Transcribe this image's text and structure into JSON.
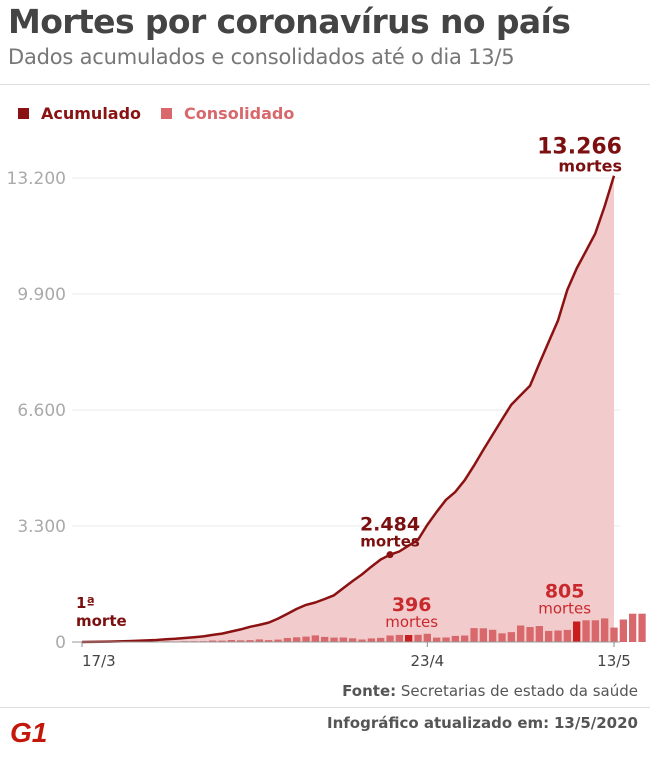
{
  "header": {
    "title": "Mortes por coronavírus no país",
    "subtitle": "Dados acumulados e consolidados até o dia 13/5"
  },
  "legend": {
    "acumulado": "Acumulado",
    "consolidado": "Consolidado"
  },
  "colors": {
    "accumulated_line": "#8b1212",
    "accumulated_area": "#f2cbcc",
    "consolidated_bar": "#d9686c",
    "highlight_bar": "#c81e1e",
    "label_dark": "#7c1010",
    "label_red": "#c8292d",
    "axis_text": "#aaaaaa",
    "gridline": "#e8e8e8",
    "logo": "#c4170c"
  },
  "chart_data": {
    "type": "area",
    "title": "Mortes por coronavírus no país",
    "yticks": [
      "0",
      "3.300",
      "6.600",
      "9.900",
      "13.200"
    ],
    "ytick_values": [
      0,
      3300,
      6600,
      9900,
      13200
    ],
    "ylim": [
      0,
      13500
    ],
    "x_tick_labels": {
      "start": "17/3",
      "mid": "23/4",
      "end": "13/5"
    },
    "x_tick_index": {
      "start": 0,
      "mid": 37,
      "end": 57
    },
    "series": [
      {
        "name": "Acumulado",
        "type": "area",
        "values": [
          1,
          4,
          6,
          11,
          18,
          25,
          34,
          46,
          57,
          77,
          92,
          114,
          136,
          159,
          201,
          240,
          299,
          359,
          432,
          486,
          553,
          667,
          800,
          941,
          1056,
          1124,
          1223,
          1328,
          1532,
          1736,
          1924,
          2141,
          2347,
          2484,
          2575,
          2741,
          2906,
          3331,
          3704,
          4045,
          4271,
          4603,
          5017,
          5466,
          5901,
          6329,
          6750,
          7025,
          7288,
          7921,
          8536,
          9146,
          10017,
          10627,
          11123,
          11625,
          12400,
          13266
        ]
      },
      {
        "name": "Consolidado",
        "type": "bar",
        "start_index": 7,
        "values": [
          12,
          11,
          20,
          15,
          22,
          22,
          23,
          42,
          39,
          57,
          48,
          53,
          73,
          54,
          67,
          114,
          133,
          153,
          188,
          144,
          126,
          127,
          104,
          70,
          103,
          118,
          184,
          202,
          198,
          205,
          234,
          126,
          129,
          174,
          186,
          396,
          389,
          347,
          247,
          281,
          470,
          427,
          456,
          316,
          328,
          345,
          584,
          618,
          618,
          672,
          409,
          639,
          805,
          805
        ],
        "highlight_indices": [
          35,
          53
        ]
      }
    ],
    "annotations": [
      {
        "line1": "1ª",
        "line2": "morte",
        "series": "Acumulado",
        "index": 0
      },
      {
        "value_text": "2.484",
        "unit": "mortes",
        "series": "Acumulado",
        "index": 33
      },
      {
        "value_text": "13.266",
        "unit": "mortes",
        "series": "Acumulado",
        "index": 57
      },
      {
        "value_text": "396",
        "unit": "mortes",
        "series": "Consolidado",
        "index": 35
      },
      {
        "value_text": "805",
        "unit": "mortes",
        "series": "Consolidado",
        "index": 53
      }
    ]
  },
  "footer": {
    "source_label": "Fonte:",
    "source_text": "Secretarias de estado da saúde",
    "updated_label": "Infográfico atualizado em:",
    "updated_date": "13/5/2020",
    "logo_text": "G1"
  }
}
